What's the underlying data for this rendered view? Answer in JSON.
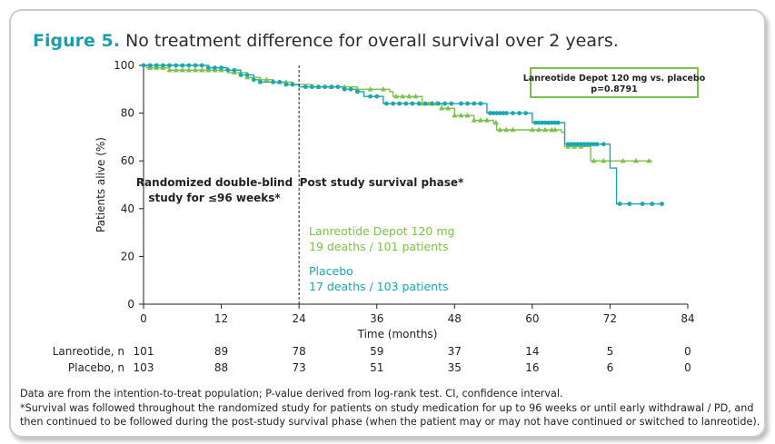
{
  "figure_label": "Figure 5.",
  "figure_title": "No treatment difference for overall survival over 2 years.",
  "colors": {
    "lanreotide": "#7cc24a",
    "placebo": "#1aa7b0",
    "accent": "#1b9fae"
  },
  "stats_box": {
    "line1": "Lanreotide Depot 120 mg vs. placebo",
    "line2": "p=0.8791"
  },
  "phase_left": {
    "line1": "Randomized double-blind",
    "line2": "study for ≤96 weeks*"
  },
  "phase_right": "Post study survival phase*",
  "legend": {
    "lanreotide_name": "Lanreotide Depot 120 mg",
    "lanreotide_deaths": "19 deaths / 101 patients",
    "placebo_name": "Placebo",
    "placebo_deaths": "17 deaths / 103 patients"
  },
  "risk_table": {
    "rows": [
      {
        "label": "Lanreotide, n",
        "values": [
          "101",
          "89",
          "78",
          "59",
          "37",
          "14",
          "5",
          "0"
        ]
      },
      {
        "label": "Placebo, n",
        "values": [
          "103",
          "88",
          "73",
          "51",
          "35",
          "16",
          "6",
          "0"
        ]
      }
    ]
  },
  "footnotes": [
    "Data are from the intention-to-treat population; P-value derived from log-rank test. CI, confidence interval.",
    "*Survival was followed throughout the randomized study for patients on study medication for up to 96 weeks or until early withdrawal / PD, and",
    "then continued to be followed during the post-study survival phase (when the patient may or may not have continued or switched to lanreotide)."
  ],
  "chart_data": {
    "type": "line",
    "subtype": "kaplan-meier step",
    "xlabel": "Time (months)",
    "ylabel": "Patients alive (%)",
    "xlim": [
      0,
      84
    ],
    "ylim": [
      0,
      100
    ],
    "xticks": [
      0,
      12,
      24,
      36,
      48,
      60,
      72,
      84
    ],
    "yticks": [
      0,
      20,
      40,
      60,
      80,
      100
    ],
    "divider_x": 24,
    "series": [
      {
        "name": "Lanreotide Depot 120 mg",
        "color": "#7cc24a",
        "marker": "triangle",
        "steps": [
          [
            0,
            100
          ],
          [
            0.5,
            99
          ],
          [
            4,
            98
          ],
          [
            13,
            97
          ],
          [
            16,
            95
          ],
          [
            18,
            94
          ],
          [
            20,
            93
          ],
          [
            23,
            92
          ],
          [
            26,
            91
          ],
          [
            33,
            90
          ],
          [
            38,
            89
          ],
          [
            38.5,
            87
          ],
          [
            43,
            84
          ],
          [
            46,
            82
          ],
          [
            48,
            79
          ],
          [
            51,
            77
          ],
          [
            54,
            76
          ],
          [
            54.5,
            73
          ],
          [
            64.5,
            72
          ],
          [
            65,
            66
          ],
          [
            69,
            60
          ],
          [
            78.5,
            60
          ]
        ],
        "censor_times": [
          1,
          2,
          3,
          4,
          5,
          6,
          7,
          8,
          9,
          10,
          11,
          12,
          14,
          16,
          18,
          19,
          21,
          22,
          27,
          29,
          31,
          33,
          35,
          37,
          39,
          40,
          41,
          42,
          43,
          44,
          44.6,
          45.2,
          46,
          47,
          48,
          49,
          50,
          51,
          52,
          53,
          54.4,
          55,
          56,
          57,
          60,
          61,
          62,
          63,
          63.5,
          65.5,
          66.5,
          67.5,
          69.5,
          71,
          74,
          76,
          78
        ]
      },
      {
        "name": "Placebo",
        "color": "#1aa7b0",
        "marker": "circle",
        "steps": [
          [
            0,
            100
          ],
          [
            10,
            99
          ],
          [
            13,
            98
          ],
          [
            15,
            96
          ],
          [
            17,
            94
          ],
          [
            18,
            93
          ],
          [
            22,
            92
          ],
          [
            24,
            91
          ],
          [
            31,
            90
          ],
          [
            33,
            89
          ],
          [
            34,
            87
          ],
          [
            37,
            84
          ],
          [
            53,
            80
          ],
          [
            60,
            76
          ],
          [
            65,
            67
          ],
          [
            72,
            57
          ],
          [
            73,
            42
          ],
          [
            80,
            42
          ]
        ],
        "censor_times": [
          0,
          1,
          2,
          3,
          4,
          5,
          6,
          7,
          8,
          9,
          10,
          11,
          12,
          13,
          14,
          15,
          16,
          17,
          18,
          20,
          21,
          22,
          23,
          25,
          26,
          27,
          28,
          29,
          30,
          31,
          32,
          33,
          35,
          36,
          37.5,
          38.5,
          39.5,
          40.5,
          41.5,
          42.5,
          43.5,
          44.5,
          45.5,
          46.5,
          47.5,
          49,
          50,
          51,
          52,
          53.5,
          54,
          54.5,
          55,
          55.5,
          56,
          57,
          58,
          59,
          60.5,
          61,
          61.5,
          62,
          62.5,
          63,
          63.5,
          64,
          65.5,
          66,
          66.5,
          67,
          67.5,
          68,
          68.5,
          69,
          69.5,
          70,
          71,
          73.5,
          75,
          77,
          78.5,
          80
        ]
      }
    ],
    "annotation": "Lanreotide Depot 120 mg vs. placebo p=0.8791"
  }
}
